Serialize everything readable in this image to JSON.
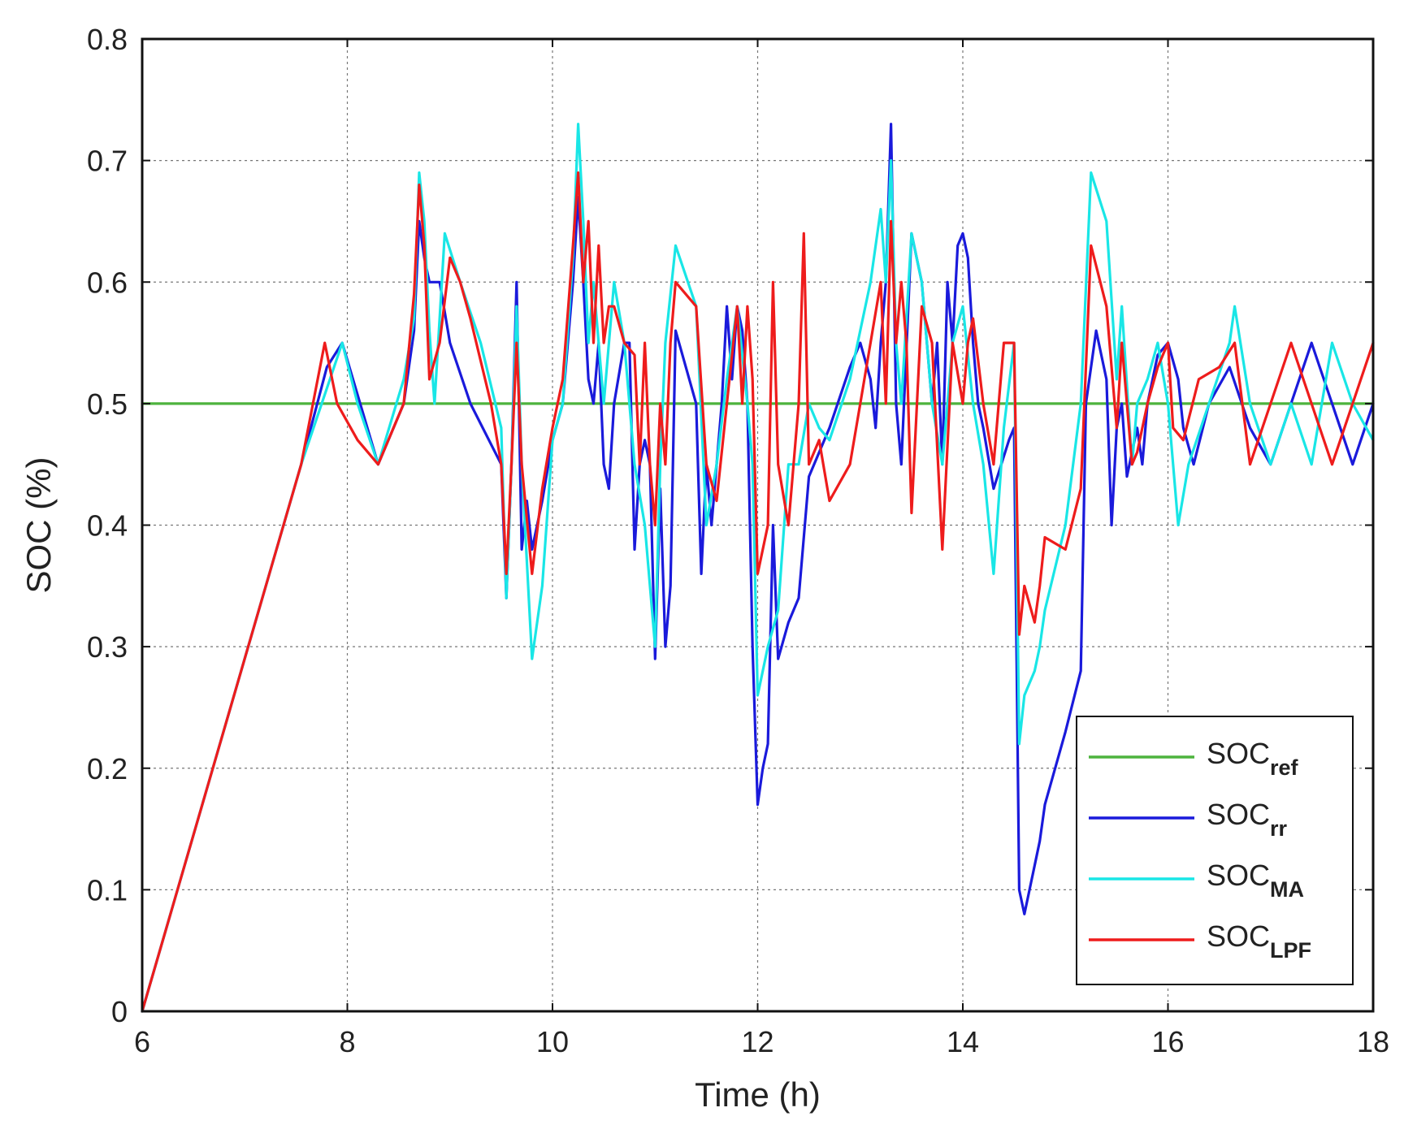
{
  "chart_data": {
    "type": "line",
    "title": "",
    "xlabel": "Time (h)",
    "ylabel": "SOC (%)",
    "xlim": [
      6,
      18
    ],
    "ylim": [
      0,
      0.8
    ],
    "x_ticks": [
      "6",
      "8",
      "10",
      "12",
      "14",
      "16",
      "18"
    ],
    "y_ticks": [
      "0",
      "0.1",
      "0.2",
      "0.3",
      "0.4",
      "0.5",
      "0.6",
      "0.7",
      "0.8"
    ],
    "x_tick_values": [
      6,
      8,
      10,
      12,
      14,
      16,
      18
    ],
    "y_tick_values": [
      0,
      0.1,
      0.2,
      0.3,
      0.4,
      0.5,
      0.6,
      0.7,
      0.8
    ],
    "grid": true,
    "legend_position": "bottom-right",
    "series": [
      {
        "label_main": "SOC",
        "label_sub": "ref",
        "color": "#4db33d",
        "x": [
          6,
          18
        ],
        "y": [
          0.5,
          0.5
        ]
      },
      {
        "label_main": "SOC",
        "label_sub": "rr",
        "color": "#1a1adb",
        "x": [
          6,
          7.55,
          7.8,
          7.95,
          8.3,
          8.55,
          8.65,
          8.7,
          8.75,
          8.8,
          8.9,
          9.0,
          9.2,
          9.5,
          9.55,
          9.6,
          9.65,
          9.7,
          9.75,
          9.8,
          9.9,
          10.0,
          10.1,
          10.2,
          10.25,
          10.3,
          10.35,
          10.4,
          10.45,
          10.5,
          10.55,
          10.6,
          10.7,
          10.75,
          10.8,
          10.85,
          10.9,
          10.95,
          11.0,
          11.05,
          11.1,
          11.15,
          11.2,
          11.4,
          11.45,
          11.5,
          11.55,
          11.6,
          11.65,
          11.7,
          11.75,
          11.8,
          11.85,
          11.9,
          11.95,
          12.0,
          12.05,
          12.1,
          12.15,
          12.2,
          12.3,
          12.4,
          12.5,
          12.7,
          12.9,
          13.0,
          13.1,
          13.15,
          13.2,
          13.25,
          13.3,
          13.35,
          13.4,
          13.5,
          13.6,
          13.7,
          13.75,
          13.8,
          13.85,
          13.9,
          13.95,
          14.0,
          14.05,
          14.1,
          14.15,
          14.2,
          14.3,
          14.45,
          14.5,
          14.55,
          14.6,
          14.7,
          14.75,
          14.8,
          15.0,
          15.15,
          15.2,
          15.3,
          15.4,
          15.45,
          15.5,
          15.55,
          15.6,
          15.65,
          15.7,
          15.75,
          15.8,
          15.9,
          16.0,
          16.1,
          16.15,
          16.25,
          16.4,
          16.6,
          16.8,
          17.0,
          17.2,
          17.4,
          17.6,
          17.8,
          18.0
        ],
        "y": [
          0,
          0.45,
          0.53,
          0.55,
          0.45,
          0.5,
          0.56,
          0.65,
          0.62,
          0.6,
          0.6,
          0.55,
          0.5,
          0.45,
          0.34,
          0.45,
          0.6,
          0.38,
          0.42,
          0.38,
          0.42,
          0.47,
          0.5,
          0.6,
          0.67,
          0.6,
          0.52,
          0.5,
          0.55,
          0.45,
          0.43,
          0.5,
          0.55,
          0.55,
          0.38,
          0.45,
          0.47,
          0.45,
          0.29,
          0.43,
          0.3,
          0.35,
          0.56,
          0.5,
          0.36,
          0.45,
          0.4,
          0.45,
          0.5,
          0.58,
          0.52,
          0.58,
          0.56,
          0.5,
          0.3,
          0.17,
          0.2,
          0.22,
          0.4,
          0.29,
          0.32,
          0.34,
          0.44,
          0.48,
          0.53,
          0.55,
          0.52,
          0.48,
          0.55,
          0.6,
          0.73,
          0.5,
          0.45,
          0.64,
          0.6,
          0.5,
          0.55,
          0.45,
          0.6,
          0.55,
          0.63,
          0.64,
          0.62,
          0.55,
          0.5,
          0.48,
          0.43,
          0.47,
          0.48,
          0.1,
          0.08,
          0.12,
          0.14,
          0.17,
          0.23,
          0.28,
          0.5,
          0.56,
          0.52,
          0.4,
          0.48,
          0.5,
          0.44,
          0.46,
          0.48,
          0.45,
          0.5,
          0.54,
          0.55,
          0.52,
          0.48,
          0.45,
          0.5,
          0.53,
          0.48,
          0.45,
          0.5,
          0.55,
          0.5,
          0.45,
          0.5
        ]
      },
      {
        "label_main": "SOC",
        "label_sub": "MA",
        "color": "#19e6e6",
        "x": [
          6,
          7.55,
          7.95,
          8.1,
          8.3,
          8.55,
          8.65,
          8.7,
          8.75,
          8.8,
          8.85,
          8.95,
          9.1,
          9.3,
          9.5,
          9.55,
          9.6,
          9.65,
          9.7,
          9.8,
          9.9,
          10.0,
          10.1,
          10.2,
          10.25,
          10.3,
          10.35,
          10.4,
          10.45,
          10.5,
          10.6,
          10.7,
          10.8,
          10.9,
          11.0,
          11.05,
          11.1,
          11.2,
          11.4,
          11.5,
          11.6,
          11.7,
          11.8,
          11.9,
          11.95,
          12.0,
          12.1,
          12.2,
          12.3,
          12.4,
          12.5,
          12.6,
          12.7,
          12.9,
          13.1,
          13.2,
          13.25,
          13.3,
          13.35,
          13.4,
          13.5,
          13.6,
          13.7,
          13.8,
          13.9,
          14.0,
          14.1,
          14.2,
          14.3,
          14.4,
          14.5,
          14.55,
          14.6,
          14.7,
          14.75,
          14.8,
          15.0,
          15.15,
          15.25,
          15.4,
          15.5,
          15.55,
          15.65,
          15.7,
          15.8,
          15.9,
          16.0,
          16.1,
          16.2,
          16.4,
          16.6,
          16.65,
          16.8,
          17.0,
          17.2,
          17.4,
          17.6,
          17.8,
          18.0
        ],
        "y": [
          0,
          0.45,
          0.55,
          0.5,
          0.45,
          0.52,
          0.57,
          0.69,
          0.65,
          0.56,
          0.5,
          0.64,
          0.6,
          0.55,
          0.48,
          0.34,
          0.45,
          0.58,
          0.45,
          0.29,
          0.35,
          0.47,
          0.5,
          0.62,
          0.73,
          0.65,
          0.55,
          0.6,
          0.55,
          0.5,
          0.6,
          0.55,
          0.45,
          0.4,
          0.3,
          0.45,
          0.55,
          0.63,
          0.58,
          0.4,
          0.45,
          0.52,
          0.58,
          0.5,
          0.45,
          0.26,
          0.3,
          0.33,
          0.45,
          0.45,
          0.5,
          0.48,
          0.47,
          0.52,
          0.6,
          0.66,
          0.6,
          0.7,
          0.55,
          0.5,
          0.64,
          0.6,
          0.5,
          0.45,
          0.55,
          0.58,
          0.5,
          0.45,
          0.36,
          0.48,
          0.55,
          0.22,
          0.26,
          0.28,
          0.3,
          0.33,
          0.4,
          0.5,
          0.69,
          0.65,
          0.52,
          0.58,
          0.45,
          0.5,
          0.52,
          0.55,
          0.5,
          0.4,
          0.45,
          0.5,
          0.55,
          0.58,
          0.5,
          0.45,
          0.5,
          0.45,
          0.55,
          0.5,
          0.47
        ]
      },
      {
        "label_main": "SOC",
        "label_sub": "LPF",
        "color": "#ee1c1c",
        "x": [
          6,
          7.55,
          7.78,
          7.9,
          8.1,
          8.3,
          8.55,
          8.65,
          8.7,
          8.75,
          8.8,
          8.9,
          9.0,
          9.1,
          9.2,
          9.4,
          9.5,
          9.55,
          9.6,
          9.65,
          9.7,
          9.8,
          9.9,
          10.0,
          10.1,
          10.2,
          10.25,
          10.3,
          10.35,
          10.4,
          10.45,
          10.5,
          10.55,
          10.6,
          10.7,
          10.8,
          10.85,
          10.9,
          10.95,
          11.0,
          11.05,
          11.1,
          11.15,
          11.2,
          11.4,
          11.5,
          11.6,
          11.7,
          11.8,
          11.85,
          11.9,
          11.95,
          12.0,
          12.1,
          12.15,
          12.2,
          12.3,
          12.4,
          12.45,
          12.5,
          12.6,
          12.7,
          12.9,
          13.0,
          13.1,
          13.2,
          13.25,
          13.3,
          13.35,
          13.4,
          13.45,
          13.5,
          13.6,
          13.7,
          13.8,
          13.9,
          14.0,
          14.05,
          14.1,
          14.2,
          14.3,
          14.4,
          14.5,
          14.55,
          14.6,
          14.7,
          14.75,
          14.8,
          15.0,
          15.15,
          15.25,
          15.4,
          15.5,
          15.55,
          15.65,
          15.7,
          15.8,
          15.9,
          16.0,
          16.05,
          16.15,
          16.3,
          16.5,
          16.65,
          16.8,
          17.0,
          17.2,
          17.4,
          17.6,
          17.8,
          18.0
        ],
        "y": [
          0,
          0.45,
          0.55,
          0.5,
          0.47,
          0.45,
          0.5,
          0.59,
          0.68,
          0.63,
          0.52,
          0.55,
          0.62,
          0.6,
          0.57,
          0.5,
          0.45,
          0.36,
          0.45,
          0.55,
          0.45,
          0.36,
          0.43,
          0.48,
          0.52,
          0.63,
          0.69,
          0.6,
          0.65,
          0.55,
          0.63,
          0.55,
          0.58,
          0.58,
          0.55,
          0.54,
          0.45,
          0.55,
          0.45,
          0.4,
          0.5,
          0.45,
          0.55,
          0.6,
          0.58,
          0.45,
          0.42,
          0.5,
          0.58,
          0.5,
          0.58,
          0.52,
          0.36,
          0.4,
          0.6,
          0.45,
          0.4,
          0.5,
          0.64,
          0.45,
          0.47,
          0.42,
          0.45,
          0.5,
          0.55,
          0.6,
          0.5,
          0.65,
          0.55,
          0.6,
          0.55,
          0.41,
          0.58,
          0.55,
          0.38,
          0.55,
          0.5,
          0.55,
          0.57,
          0.5,
          0.45,
          0.55,
          0.55,
          0.31,
          0.35,
          0.32,
          0.35,
          0.39,
          0.38,
          0.43,
          0.63,
          0.58,
          0.48,
          0.55,
          0.45,
          0.46,
          0.5,
          0.53,
          0.55,
          0.48,
          0.47,
          0.52,
          0.53,
          0.55,
          0.45,
          0.5,
          0.55,
          0.5,
          0.45,
          0.5,
          0.55
        ]
      }
    ]
  }
}
